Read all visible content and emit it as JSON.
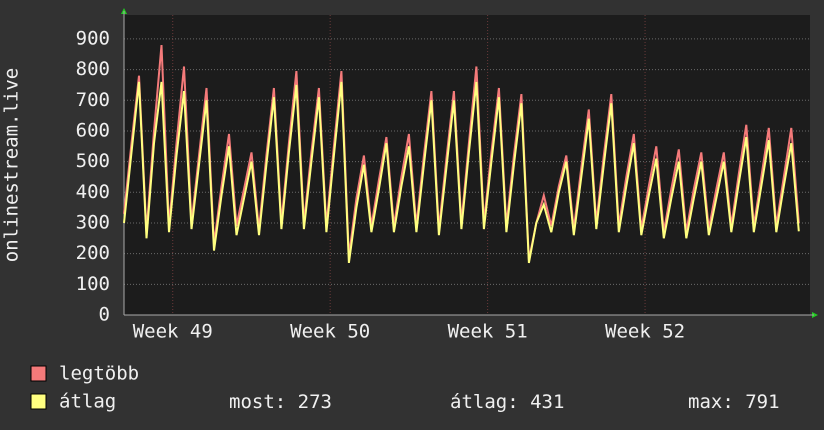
{
  "chart_data": {
    "type": "line",
    "ylabel": "onlinestream.live",
    "x": [
      0,
      1,
      2,
      3,
      4,
      5,
      6,
      7,
      8,
      9,
      10,
      11,
      12,
      13,
      14,
      15,
      16,
      17,
      18,
      19,
      20,
      21,
      22,
      23,
      24,
      25,
      26,
      27,
      28,
      29,
      30,
      31,
      32,
      33,
      34,
      35,
      36,
      37,
      38,
      39,
      40,
      41,
      42,
      43,
      44,
      45,
      46,
      47,
      48,
      49,
      50,
      51,
      52,
      53,
      54,
      55,
      56,
      57,
      58,
      59,
      60,
      61,
      62,
      63,
      64,
      65,
      66,
      67,
      68,
      69,
      70,
      71,
      72,
      73,
      74,
      75,
      76,
      77,
      78,
      79,
      80,
      81,
      82,
      83,
      84,
      85,
      86,
      87,
      88,
      89,
      90
    ],
    "series": [
      {
        "name": "legtöbb",
        "color": "#f47a7a",
        "values": [
          330,
          560,
          780,
          270,
          600,
          880,
          290,
          560,
          810,
          300,
          520,
          740,
          230,
          420,
          590,
          290,
          410,
          530,
          280,
          520,
          740,
          300,
          560,
          795,
          300,
          530,
          740,
          290,
          550,
          795,
          190,
          380,
          520,
          290,
          440,
          580,
          290,
          450,
          590,
          290,
          520,
          730,
          280,
          510,
          730,
          300,
          560,
          810,
          300,
          530,
          740,
          290,
          520,
          720,
          180,
          300,
          390,
          290,
          420,
          520,
          280,
          480,
          670,
          300,
          520,
          720,
          290,
          450,
          590,
          280,
          420,
          550,
          270,
          410,
          540,
          270,
          410,
          530,
          280,
          410,
          530,
          290,
          460,
          620,
          290,
          450,
          610,
          290,
          450,
          610,
          300
        ]
      },
      {
        "name": "átlag",
        "color": "#ffff80",
        "values": [
          300,
          530,
          760,
          250,
          560,
          760,
          270,
          520,
          730,
          280,
          490,
          700,
          210,
          390,
          550,
          260,
          380,
          500,
          260,
          490,
          710,
          280,
          530,
          750,
          280,
          500,
          710,
          270,
          520,
          760,
          170,
          350,
          490,
          270,
          410,
          560,
          270,
          420,
          550,
          270,
          490,
          700,
          260,
          480,
          700,
          280,
          530,
          760,
          280,
          500,
          710,
          270,
          490,
          690,
          170,
          300,
          360,
          270,
          400,
          500,
          260,
          450,
          640,
          280,
          490,
          690,
          270,
          420,
          560,
          260,
          390,
          510,
          250,
          380,
          500,
          250,
          380,
          500,
          260,
          380,
          500,
          270,
          430,
          580,
          270,
          420,
          570,
          270,
          420,
          560,
          273
        ]
      }
    ],
    "xlim": [
      0,
      91.5
    ],
    "xticks": [
      {
        "value": 6.5,
        "label": "Week 49"
      },
      {
        "value": 27.5,
        "label": "Week 50"
      },
      {
        "value": 48.5,
        "label": "Week 51"
      },
      {
        "value": 69.5,
        "label": "Week 52"
      }
    ],
    "ylim": [
      0,
      978
    ],
    "yticks": [
      0,
      100,
      200,
      300,
      400,
      500,
      600,
      700,
      800,
      900
    ],
    "grid": true,
    "stats": [
      {
        "label": "most:",
        "value": 273
      },
      {
        "label": "átlag:",
        "value": 431
      },
      {
        "label": "max:",
        "value": 791
      }
    ]
  }
}
